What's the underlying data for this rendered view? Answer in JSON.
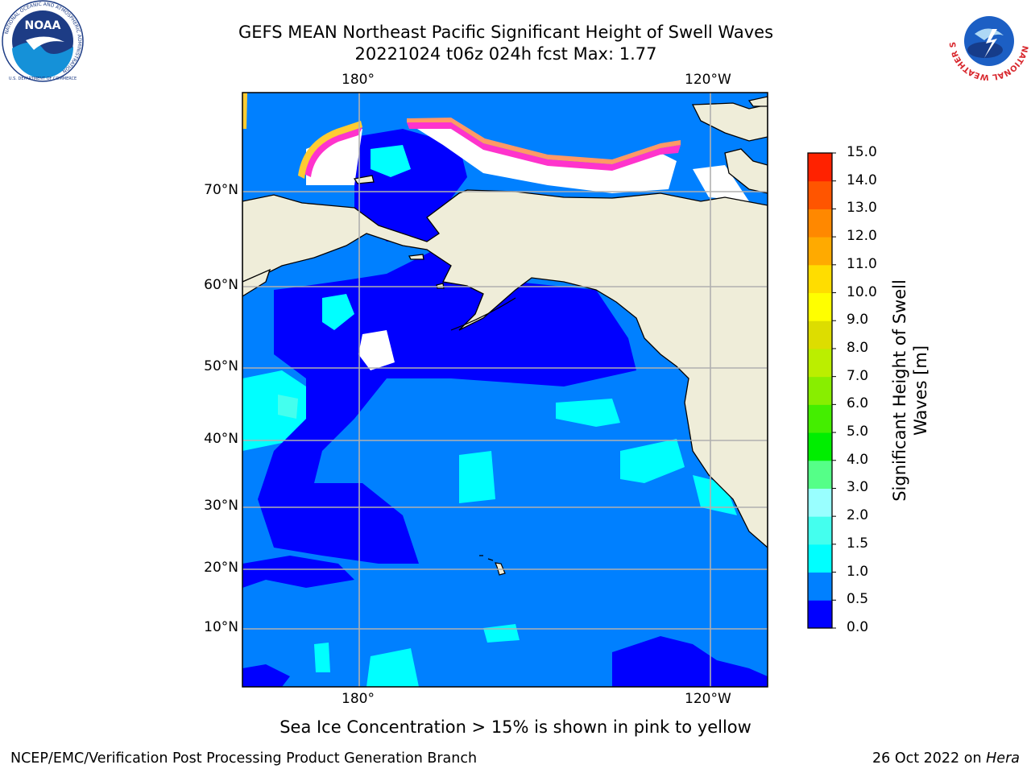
{
  "title_line1": "GEFS MEAN Northeast Pacific Significant Height of Swell Waves",
  "title_line2": "20221024 t06z 024h fcst   Max: 1.77",
  "logos": {
    "left": "noaa-logo",
    "right": "nws-logo"
  },
  "noaa_logo_text": "NOAA",
  "noaa_ring_text": "NATIONAL OCEANIC AND ATMOSPHERIC ADMINISTRATION",
  "noaa_bottom_text": "U.S. DEPARTMENT OF COMMERCE",
  "nws_ring_text": "NATIONAL WEATHER SERVICE",
  "map": {
    "lon_labels_top": [
      "180°",
      "120°W"
    ],
    "lon_labels_bottom": [
      "180°",
      "120°W"
    ],
    "lat_labels": [
      "70°N",
      "60°N",
      "50°N",
      "40°N",
      "30°N",
      "20°N",
      "10°N"
    ],
    "sea_ice_colors": [
      "#ff33cc",
      "#ff9966",
      "#ffcc33",
      "#ffffff"
    ],
    "land_color": "#efedd9",
    "grid_color": "#b0b0b0"
  },
  "colorbar": {
    "title": "Significant Height of Swell Waves [m]",
    "title_line1": "Significant Height of Swell",
    "title_line2": "Waves [m]",
    "ticks": [
      "0.0",
      "0.5",
      "1.0",
      "1.5",
      "2.0",
      "3.0",
      "4.0",
      "5.0",
      "6.0",
      "7.0",
      "8.0",
      "9.0",
      "10.0",
      "11.0",
      "12.0",
      "13.0",
      "14.0",
      "15.0"
    ],
    "colors": [
      "#0000ff",
      "#0080ff",
      "#00ffff",
      "#44ffee",
      "#99ffff",
      "#55ff88",
      "#00ee00",
      "#44ee00",
      "#88ee00",
      "#bbee00",
      "#dddd00",
      "#ffff00",
      "#ffdd00",
      "#ffaa00",
      "#ff8800",
      "#ff5500",
      "#ff2200"
    ]
  },
  "sea_ice_note": "Sea Ice Concentration > 15% is shown in pink to yellow",
  "credit": "NCEP/EMC/Verification Post Processing Product Generation Branch",
  "date_prefix": "26 Oct 2022 on",
  "date_host": "Hera"
}
